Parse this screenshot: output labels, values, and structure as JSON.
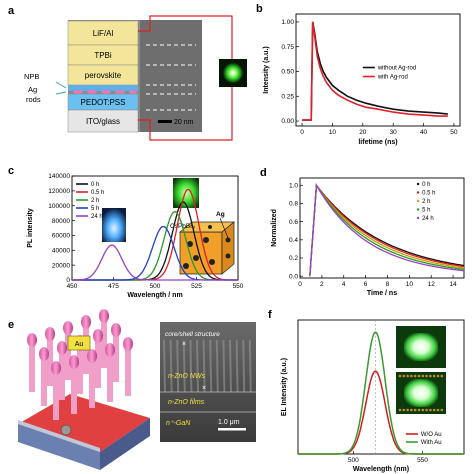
{
  "panels": {
    "a": {
      "tag": "a",
      "layers": [
        "LiF/Al",
        "TPBi",
        "perovskite",
        "PEDOT:PSS",
        "ITO/glass"
      ],
      "side_labels": [
        "NPB",
        "Ag",
        "rods"
      ],
      "scalebar": "20 nm"
    },
    "c_inset": {
      "crystal_label": "CsPbBr₃",
      "particle_label": "Ag"
    },
    "e": {
      "tag": "e",
      "au_label": "Au",
      "sem_labels": [
        "core/shell structure",
        "n-ZnO NWs",
        "n-ZnO films",
        "n⁺-GaN"
      ],
      "scalebar": "1.0 μm",
      "cross_marks": [
        "×",
        "×"
      ]
    }
  },
  "chart_data": [
    {
      "id": "b",
      "tag": "b",
      "type": "line",
      "xlabel": "lifetime (ns)",
      "ylabel": "Intensity (a.u.)",
      "xlim": [
        -2,
        52
      ],
      "ylim": [
        -0.05,
        1.08
      ],
      "xticks": [
        0,
        10,
        20,
        30,
        40,
        50
      ],
      "yticks": [
        0.0,
        0.25,
        0.5,
        0.75,
        1.0
      ],
      "ytick_labels": [
        "0.00",
        "0.25",
        "0.50",
        "0.75",
        "1.00"
      ],
      "legend": "right",
      "series": [
        {
          "name": "without Ag-rod",
          "color": "#111111",
          "x": [
            0,
            3,
            3.5,
            4,
            5,
            6,
            7,
            8,
            10,
            12,
            15,
            18,
            21,
            25,
            30,
            35,
            40,
            45,
            48
          ],
          "y": [
            0.01,
            0.01,
            1.0,
            0.92,
            0.7,
            0.58,
            0.5,
            0.44,
            0.36,
            0.31,
            0.25,
            0.21,
            0.18,
            0.15,
            0.12,
            0.1,
            0.09,
            0.08,
            0.07
          ]
        },
        {
          "name": "with Ag-rod",
          "color": "#e0202a",
          "x": [
            0,
            3,
            3.5,
            4,
            5,
            6,
            7,
            8,
            10,
            12,
            15,
            18,
            21,
            25,
            30,
            35,
            40,
            45,
            48
          ],
          "y": [
            0.01,
            0.01,
            1.0,
            0.89,
            0.65,
            0.53,
            0.45,
            0.39,
            0.31,
            0.26,
            0.21,
            0.17,
            0.14,
            0.12,
            0.09,
            0.07,
            0.06,
            0.05,
            0.05
          ]
        }
      ]
    },
    {
      "id": "c",
      "tag": "c",
      "type": "line",
      "xlabel": "Wavelength / nm",
      "ylabel": "PL intensity",
      "xlim": [
        450,
        550
      ],
      "ylim": [
        0,
        140000
      ],
      "xticks": [
        450,
        475,
        500,
        525,
        550
      ],
      "yticks": [
        0,
        20000,
        40000,
        60000,
        80000,
        100000,
        120000,
        140000
      ],
      "ytick_labels": [
        "0",
        "20000",
        "40000",
        "60000",
        "80000",
        "100000",
        "120000",
        "140000"
      ],
      "legend": "top-left",
      "series": [
        {
          "name": "0 h",
          "color": "#111111",
          "peak": 517,
          "height": 105000,
          "width": 6.5
        },
        {
          "name": "0.5 h",
          "color": "#e02020",
          "peak": 520,
          "height": 122000,
          "width": 6.5
        },
        {
          "name": "2 h",
          "color": "#2a9a2a",
          "peak": 512,
          "height": 92000,
          "width": 6.5
        },
        {
          "name": "5 h",
          "color": "#2040d0",
          "peak": 505,
          "height": 72000,
          "width": 6.5
        },
        {
          "name": "24 h",
          "color": "#9b3fc4",
          "peak": 474,
          "height": 47000,
          "width": 6
        }
      ]
    },
    {
      "id": "d",
      "tag": "d",
      "type": "line",
      "xlabel": "Time / ns",
      "ylabel": "Normalized",
      "xlim": [
        0,
        15
      ],
      "ylim": [
        -0.02,
        1.08
      ],
      "xticks": [
        0,
        2,
        4,
        6,
        8,
        10,
        12,
        14
      ],
      "yticks": [
        0.0,
        0.2,
        0.4,
        0.6,
        0.8,
        1.0
      ],
      "ytick_labels": [
        "0.0",
        "0.2",
        "0.4",
        "0.6",
        "0.8",
        "1.0"
      ],
      "legend": "top-right",
      "series": [
        {
          "name": "0 h",
          "color": "#111111",
          "t0": 1.5,
          "tau": 6.3
        },
        {
          "name": "0.5 h",
          "color": "#e02020",
          "t0": 1.5,
          "tau": 6.0
        },
        {
          "name": "2 h",
          "color": "#c8a000",
          "t0": 1.5,
          "tau": 5.6
        },
        {
          "name": "5 h",
          "color": "#2a9a2a",
          "t0": 1.5,
          "tau": 5.2
        },
        {
          "name": "24 h",
          "color": "#9b3fc4",
          "t0": 1.5,
          "tau": 4.8
        }
      ]
    },
    {
      "id": "f",
      "tag": "f",
      "type": "line",
      "xlabel": "Wavelength (nm)",
      "ylabel": "EL Intensity (a.u.)",
      "xlim": [
        460,
        580
      ],
      "ylim": [
        0,
        1.1
      ],
      "xticks": [
        500,
        550
      ],
      "legend": "bottom-right",
      "series": [
        {
          "name": "W/O Au",
          "color": "#d02020",
          "peak": 516,
          "height": 0.68,
          "width": 7
        },
        {
          "name": "With Au",
          "color": "#3a9a30",
          "peak": 516,
          "height": 1.0,
          "width": 7
        }
      ]
    }
  ]
}
